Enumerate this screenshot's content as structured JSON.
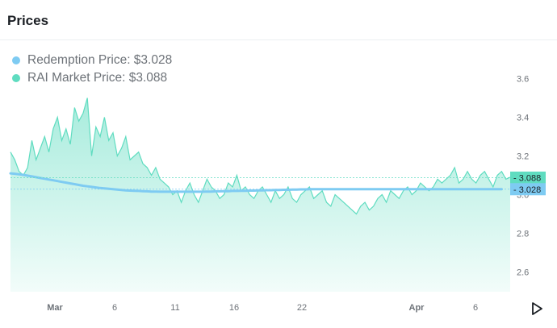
{
  "header": {
    "title": "Prices"
  },
  "legend": {
    "redemption": {
      "label": "Redemption Price: $3.028",
      "color": "#7ecbf2"
    },
    "market": {
      "label": "RAI Market Price: $3.088",
      "color": "#5fdcc0"
    }
  },
  "chart_data": {
    "type": "area",
    "title": "",
    "xlabel": "",
    "ylabel": "",
    "x_ticks": [
      "Mar",
      "6",
      "11",
      "16",
      "22",
      "Apr",
      "6"
    ],
    "y_ticks": [
      "3.6",
      "3.4",
      "3.2",
      "3.0",
      "2.8",
      "2.6"
    ],
    "ylim": [
      2.5,
      3.7
    ],
    "grid": false,
    "current_values": {
      "market": "3.088",
      "redemption": "3.028"
    },
    "series": [
      {
        "name": "RAI Market Price",
        "color": "#5fdcc0",
        "values": [
          3.22,
          3.18,
          3.12,
          3.1,
          3.14,
          3.28,
          3.18,
          3.24,
          3.3,
          3.22,
          3.34,
          3.4,
          3.28,
          3.34,
          3.26,
          3.45,
          3.38,
          3.42,
          3.5,
          3.2,
          3.35,
          3.3,
          3.4,
          3.28,
          3.32,
          3.2,
          3.24,
          3.3,
          3.18,
          3.2,
          3.22,
          3.16,
          3.14,
          3.1,
          3.14,
          3.08,
          3.06,
          3.04,
          3.0,
          3.02,
          2.96,
          3.02,
          3.06,
          3.0,
          2.96,
          3.02,
          3.08,
          3.04,
          3.02,
          2.98,
          3.0,
          3.06,
          3.04,
          3.1,
          3.02,
          3.04,
          3.0,
          2.98,
          3.02,
          3.04,
          3.0,
          2.96,
          3.02,
          2.98,
          3.0,
          3.04,
          2.98,
          2.96,
          3.0,
          3.02,
          3.04,
          2.98,
          3.0,
          3.02,
          2.96,
          2.94,
          3.0,
          2.98,
          2.96,
          2.94,
          2.92,
          2.9,
          2.94,
          2.96,
          2.92,
          2.94,
          2.98,
          3.0,
          2.96,
          3.02,
          3.0,
          2.98,
          3.02,
          3.04,
          3.0,
          3.02,
          3.06,
          3.04,
          3.02,
          3.04,
          3.08,
          3.06,
          3.08,
          3.1,
          3.14,
          3.06,
          3.08,
          3.12,
          3.08,
          3.06,
          3.1,
          3.12,
          3.08,
          3.04,
          3.1,
          3.12,
          3.08,
          3.09
        ]
      },
      {
        "name": "Redemption Price",
        "color": "#7ecbf2",
        "values": [
          3.11,
          3.108,
          3.105,
          3.102,
          3.098,
          3.094,
          3.09,
          3.086,
          3.082,
          3.078,
          3.074,
          3.07,
          3.066,
          3.062,
          3.058,
          3.054,
          3.05,
          3.046,
          3.043,
          3.04,
          3.037,
          3.034,
          3.032,
          3.03,
          3.028,
          3.026,
          3.024,
          3.022,
          3.021,
          3.02,
          3.019,
          3.018,
          3.017,
          3.016,
          3.016,
          3.015,
          3.015,
          3.015,
          3.015,
          3.015,
          3.015,
          3.015,
          3.015,
          3.015,
          3.015,
          3.015,
          3.016,
          3.016,
          3.017,
          3.017,
          3.018,
          3.018,
          3.019,
          3.019,
          3.02,
          3.02,
          3.021,
          3.021,
          3.022,
          3.022,
          3.023,
          3.023,
          3.024,
          3.024,
          3.025,
          3.025,
          3.026,
          3.026,
          3.027,
          3.027,
          3.028,
          3.028,
          3.028,
          3.028,
          3.028,
          3.028,
          3.028,
          3.028,
          3.028,
          3.028,
          3.028,
          3.028,
          3.028,
          3.028,
          3.028,
          3.028,
          3.028,
          3.028,
          3.028,
          3.028,
          3.028,
          3.028,
          3.028,
          3.028,
          3.028,
          3.028,
          3.028,
          3.028,
          3.028,
          3.028,
          3.028,
          3.028,
          3.028,
          3.028,
          3.028,
          3.028,
          3.028,
          3.028,
          3.028,
          3.028,
          3.028,
          3.028,
          3.028,
          3.028,
          3.028,
          3.028
        ]
      }
    ]
  }
}
